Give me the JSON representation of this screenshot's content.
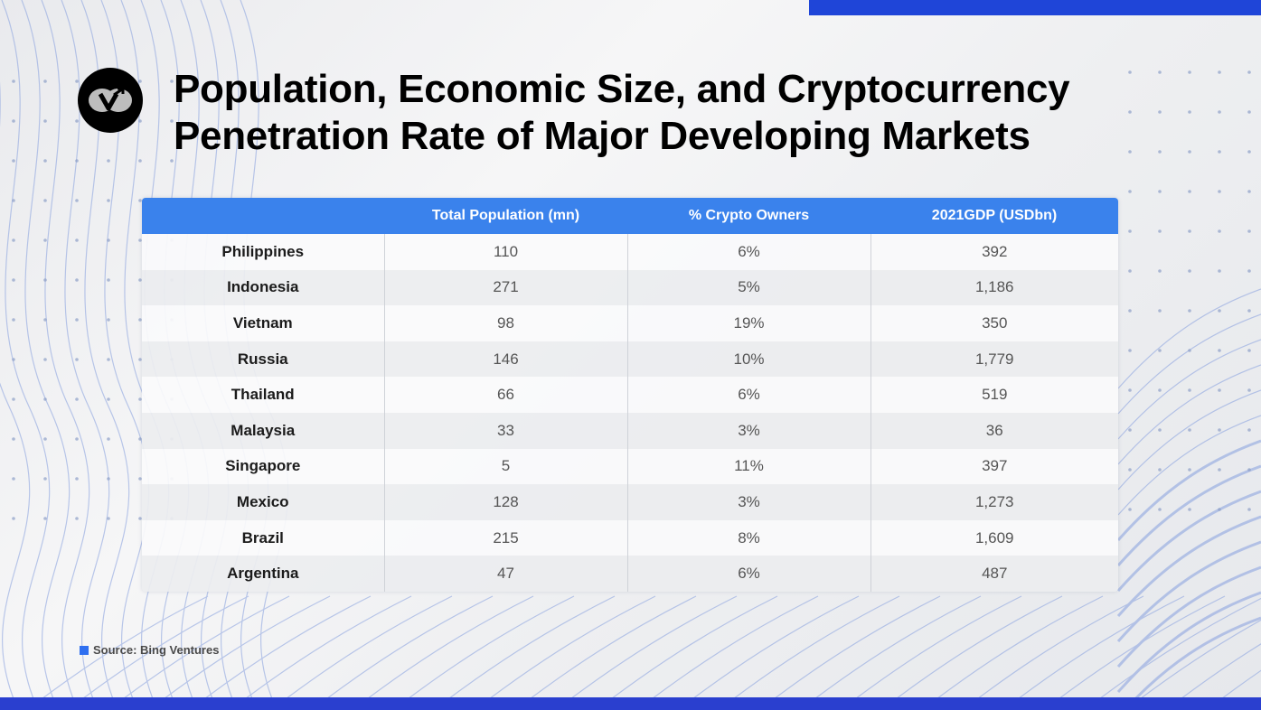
{
  "slide": {
    "title_line1": "Population, Economic Size, and Cryptocurrency",
    "title_line2": "Penetration Rate of Major Developing Markets",
    "logo_icon": "bing-ventures-logo-icon",
    "source": "Source: Bing Ventures",
    "colors": {
      "accent_bar": "#1f45d8",
      "bottom_bar": "#2a3fcf",
      "table_header": "#3a82ec",
      "source_marker": "#2f6ff0"
    }
  },
  "chart_data": {
    "type": "table",
    "title": "Population, Economic Size, and Cryptocurrency Penetration Rate of Major Developing Markets",
    "columns": [
      "",
      "Total Population (mn)",
      "% Crypto Owners",
      "2021GDP (USDbn)"
    ],
    "rows": [
      {
        "country": "Philippines",
        "population": "110",
        "crypto": "6%",
        "gdp": "392"
      },
      {
        "country": "Indonesia",
        "population": "271",
        "crypto": "5%",
        "gdp": "1,186"
      },
      {
        "country": "Vietnam",
        "population": "98",
        "crypto": "19%",
        "gdp": "350"
      },
      {
        "country": "Russia",
        "population": "146",
        "crypto": "10%",
        "gdp": "1,779"
      },
      {
        "country": "Thailand",
        "population": "66",
        "crypto": "6%",
        "gdp": "519"
      },
      {
        "country": "Malaysia",
        "population": "33",
        "crypto": "3%",
        "gdp": "36"
      },
      {
        "country": "Singapore",
        "population": "5",
        "crypto": "11%",
        "gdp": "397"
      },
      {
        "country": "Mexico",
        "population": "128",
        "crypto": "3%",
        "gdp": "1,273"
      },
      {
        "country": "Brazil",
        "population": "215",
        "crypto": "8%",
        "gdp": "1,609"
      },
      {
        "country": "Argentina",
        "population": "47",
        "crypto": "6%",
        "gdp": "487"
      }
    ],
    "source": "Bing Ventures"
  }
}
